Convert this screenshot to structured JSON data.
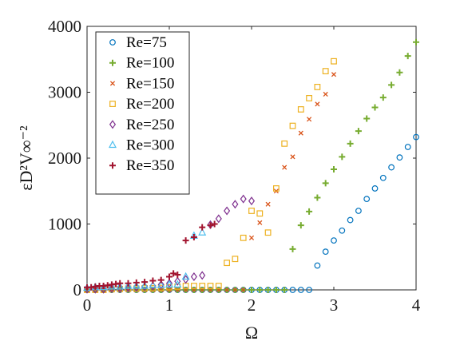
{
  "chart_data": {
    "type": "scatter",
    "title": "",
    "xlabel": "Ω",
    "ylabel": "εD²V∞⁻²",
    "xlim": [
      0,
      4
    ],
    "ylim": [
      0,
      4000
    ],
    "xticks": [
      0,
      1,
      2,
      3,
      4
    ],
    "yticks": [
      0,
      1000,
      2000,
      3000,
      4000
    ],
    "xtick_labels": [
      "0",
      "1",
      "2",
      "3",
      "4"
    ],
    "ytick_labels": [
      "0",
      "1000",
      "2000",
      "3000",
      "4000"
    ],
    "grid": false,
    "legend_position": "top-left",
    "series": [
      {
        "name": "Re=75",
        "marker": "circle",
        "color": "#0072BD",
        "x": [
          0,
          0.1,
          0.2,
          0.3,
          0.4,
          0.5,
          0.6,
          0.7,
          0.8,
          0.9,
          1.0,
          1.1,
          1.2,
          1.3,
          1.4,
          1.5,
          1.6,
          1.7,
          1.8,
          1.9,
          2.0,
          2.1,
          2.2,
          2.3,
          2.4,
          2.5,
          2.6,
          2.7,
          2.8,
          2.9,
          3.0,
          3.1,
          3.2,
          3.3,
          3.4,
          3.5,
          3.6,
          3.7,
          3.8,
          3.9,
          4.0
        ],
        "y": [
          0,
          0,
          0,
          0,
          0,
          0,
          0,
          0,
          0,
          0,
          0,
          0,
          0,
          0,
          0,
          0,
          0,
          0,
          0,
          0,
          0,
          0,
          0,
          0,
          0,
          0,
          0,
          0,
          370,
          580,
          750,
          900,
          1060,
          1200,
          1380,
          1540,
          1700,
          1860,
          2010,
          2170,
          2320
        ]
      },
      {
        "name": "Re=100",
        "marker": "plus",
        "color": "#77AC30",
        "x": [
          0,
          0.1,
          0.2,
          0.3,
          0.4,
          0.5,
          0.6,
          0.7,
          0.8,
          0.9,
          1.0,
          1.1,
          1.2,
          1.3,
          1.4,
          1.5,
          1.6,
          1.7,
          1.8,
          1.9,
          2.0,
          2.1,
          2.2,
          2.3,
          2.4,
          2.5,
          2.6,
          2.7,
          2.8,
          2.9,
          3.0,
          3.1,
          3.2,
          3.3,
          3.4,
          3.5,
          3.6,
          3.7,
          3.8,
          3.9,
          4.0
        ],
        "y": [
          0,
          0,
          0,
          0,
          0,
          0,
          0,
          0,
          0,
          0,
          0,
          0,
          0,
          0,
          0,
          0,
          0,
          0,
          0,
          0,
          0,
          0,
          0,
          0,
          0,
          620,
          980,
          1190,
          1400,
          1620,
          1830,
          2020,
          2220,
          2410,
          2600,
          2770,
          2920,
          3110,
          3300,
          3550,
          3760
        ]
      },
      {
        "name": "Re=150",
        "marker": "x",
        "color": "#D95319",
        "x": [
          0,
          0.1,
          0.2,
          0.3,
          0.4,
          0.5,
          0.6,
          0.7,
          0.8,
          0.9,
          1.0,
          1.1,
          1.2,
          1.3,
          1.4,
          1.5,
          1.6,
          1.7,
          1.8,
          1.9,
          2.0,
          2.1,
          2.2,
          2.3,
          2.4,
          2.5,
          2.6,
          2.7,
          2.8,
          2.9,
          3.0
        ],
        "y": [
          0,
          0,
          0,
          0,
          0,
          0,
          0,
          0,
          0,
          0,
          0,
          0,
          0,
          0,
          0,
          0,
          0,
          0,
          0,
          0,
          790,
          1020,
          1300,
          1500,
          1860,
          2020,
          2380,
          2590,
          2820,
          2970,
          3270
        ]
      },
      {
        "name": "Re=200",
        "marker": "square",
        "color": "#EDB120",
        "x": [
          0,
          0.1,
          0.2,
          0.3,
          0.4,
          0.5,
          0.6,
          0.7,
          0.8,
          0.9,
          1.0,
          1.1,
          1.2,
          1.3,
          1.4,
          1.5,
          1.6,
          1.7,
          1.8,
          1.9,
          2.0,
          2.1,
          2.2,
          2.3,
          2.4,
          2.5,
          2.6,
          2.7,
          2.8,
          2.9,
          3.0
        ],
        "y": [
          0,
          0,
          0,
          10,
          15,
          20,
          20,
          25,
          25,
          30,
          40,
          50,
          60,
          60,
          60,
          60,
          60,
          410,
          470,
          790,
          1200,
          1160,
          870,
          1540,
          2220,
          2490,
          2740,
          2910,
          3080,
          3320,
          3470
        ]
      },
      {
        "name": "Re=250",
        "marker": "diamond",
        "color": "#7E2F8E",
        "x": [
          0,
          0.1,
          0.2,
          0.3,
          0.4,
          0.5,
          0.6,
          0.7,
          0.8,
          0.9,
          1.0,
          1.1,
          1.2,
          1.3,
          1.4,
          1.5,
          1.6,
          1.7,
          1.8,
          1.9,
          2.0
        ],
        "y": [
          10,
          10,
          10,
          20,
          20,
          30,
          40,
          50,
          60,
          80,
          100,
          130,
          160,
          200,
          220,
          990,
          1080,
          1200,
          1300,
          1380,
          1350
        ]
      },
      {
        "name": "Re=300",
        "marker": "triangle",
        "color": "#4DBEEE",
        "x": [
          0,
          0.1,
          0.2,
          0.3,
          0.4,
          0.5,
          0.6,
          0.7,
          0.8,
          0.9,
          1.0,
          1.1,
          1.2,
          1.3,
          1.4
        ],
        "y": [
          30,
          40,
          40,
          50,
          50,
          60,
          60,
          60,
          70,
          70,
          80,
          80,
          200,
          820,
          870
        ]
      },
      {
        "name": "Re=350",
        "marker": "plus",
        "color": "#A2142F",
        "x": [
          0,
          0.05,
          0.1,
          0.15,
          0.2,
          0.25,
          0.3,
          0.35,
          0.4,
          0.5,
          0.6,
          0.7,
          0.8,
          0.9,
          1.0,
          1.05,
          1.1,
          1.2,
          1.3,
          1.4,
          1.5,
          1.55
        ],
        "y": [
          40,
          40,
          50,
          60,
          60,
          70,
          80,
          90,
          100,
          100,
          110,
          120,
          140,
          150,
          200,
          250,
          230,
          750,
          800,
          950,
          980,
          1000
        ]
      }
    ]
  }
}
